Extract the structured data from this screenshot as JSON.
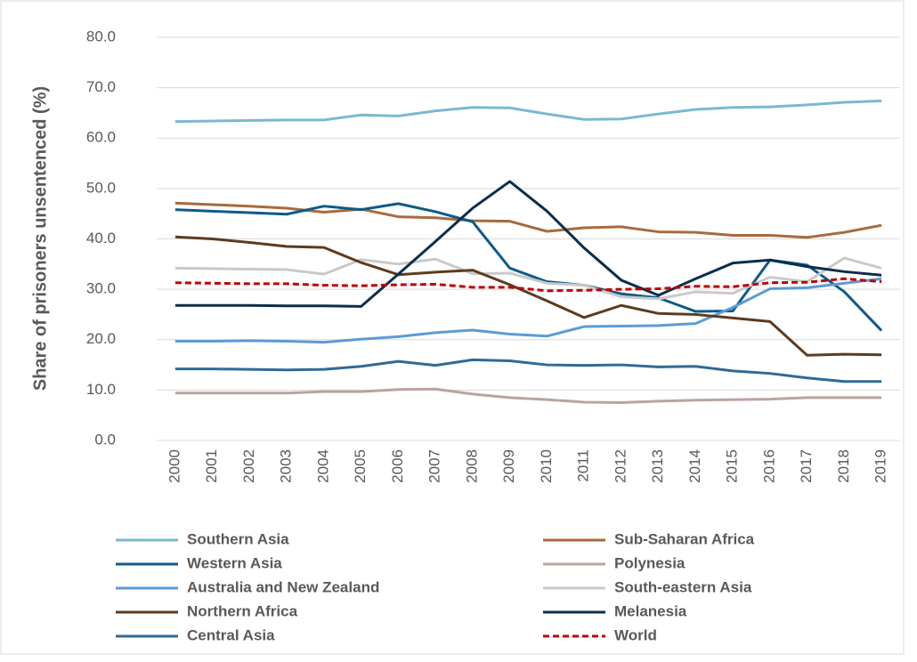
{
  "chart_data": {
    "type": "line",
    "y_label": "Share of prisoners unsentenced (%)",
    "categories": [
      "2000",
      "2001",
      "2002",
      "2003",
      "2004",
      "2005",
      "2006",
      "2007",
      "2008",
      "2009",
      "2010",
      "2011",
      "2012",
      "2013",
      "2014",
      "2015",
      "2016",
      "2017",
      "2018",
      "2019"
    ],
    "ylim": [
      0,
      80
    ],
    "yticks": [
      {
        "value": 0,
        "label": "0.0"
      },
      {
        "value": 10,
        "label": "10.0"
      },
      {
        "value": 20,
        "label": "20.0"
      },
      {
        "value": 30,
        "label": "30.0"
      },
      {
        "value": 40,
        "label": "40.0"
      },
      {
        "value": 50,
        "label": "50.0"
      },
      {
        "value": 60,
        "label": "60.0"
      },
      {
        "value": 70,
        "label": "70.0"
      },
      {
        "value": 80,
        "label": "80.0"
      }
    ],
    "grid": true,
    "legend": "bottom",
    "series": [
      {
        "name": "Southern Asia",
        "color": "#7ab8d2",
        "values": [
          63.3,
          63.4,
          63.5,
          63.6,
          63.6,
          64.6,
          64.4,
          65.4,
          66.1,
          66,
          64.8,
          63.7,
          63.8,
          64.8,
          65.7,
          66.1,
          66.2,
          66.6,
          67.1,
          67.4
        ]
      },
      {
        "name": "Sub-Saharan Africa",
        "color": "#a86a3d",
        "values": [
          47.1,
          46.8,
          46.5,
          46.1,
          45.3,
          45.9,
          44.4,
          44.2,
          43.6,
          43.5,
          41.5,
          42.2,
          42.4,
          41.4,
          41.3,
          40.7,
          40.7,
          40.3,
          41.3,
          42.7
        ]
      },
      {
        "name": "Western Asia",
        "color": "#0e5a8a",
        "values": [
          45.8,
          45.5,
          45.2,
          44.9,
          46.5,
          45.8,
          47,
          45.4,
          43.4,
          34.2,
          31.5,
          30.8,
          29.1,
          28.3,
          25.6,
          25.7,
          35.8,
          34.8,
          29.5,
          21.8
        ]
      },
      {
        "name": "Polynesia",
        "color": "#bba39d",
        "values": [
          9.4,
          9.4,
          9.4,
          9.4,
          9.7,
          9.7,
          10.1,
          10.2,
          9.2,
          8.5,
          8.1,
          7.6,
          7.5,
          7.8,
          8,
          8.1,
          8.2,
          8.5,
          8.5,
          8.5
        ]
      },
      {
        "name": "Australia and New Zealand",
        "color": "#5b9bd5",
        "values": [
          19.7,
          19.7,
          19.8,
          19.7,
          19.5,
          20.1,
          20.6,
          21.4,
          21.9,
          21.1,
          20.7,
          22.6,
          22.7,
          22.8,
          23.2,
          26.4,
          30.1,
          30.3,
          31.2,
          32.1
        ]
      },
      {
        "name": "South-eastern Asia",
        "color": "#c9c9c9",
        "values": [
          34.2,
          34.1,
          34,
          33.9,
          33,
          35.9,
          35,
          36,
          33.1,
          33.2,
          31.2,
          30.8,
          28.5,
          28.1,
          29.5,
          29.2,
          32.4,
          31.5,
          36.2,
          34.2
        ]
      },
      {
        "name": "Northern Africa",
        "color": "#5c3b20",
        "values": [
          40.4,
          40,
          39.3,
          38.5,
          38.3,
          35.3,
          32.9,
          33.4,
          33.8,
          30.9,
          27.7,
          24.4,
          26.8,
          25.2,
          25,
          24.3,
          23.6,
          16.9,
          17.1,
          17
        ]
      },
      {
        "name": "Melanesia",
        "color": "#0b2e4a",
        "values": [
          26.8,
          26.8,
          26.8,
          26.7,
          26.7,
          26.6,
          33,
          39.5,
          46.1,
          51.4,
          45.5,
          38.2,
          31.8,
          28.8,
          32.1,
          35.2,
          35.8,
          34.5,
          33.5,
          32.8
        ]
      },
      {
        "name": "Central Asia",
        "color": "#2e6a98",
        "values": [
          14.2,
          14.2,
          14.1,
          14,
          14.1,
          14.7,
          15.7,
          14.9,
          16,
          15.8,
          15,
          14.9,
          15,
          14.6,
          14.7,
          13.8,
          13.3,
          12.4,
          11.7,
          11.7
        ]
      },
      {
        "name": "World",
        "color": "#c00000",
        "dashed": true,
        "values": [
          31.3,
          31.2,
          31.1,
          31.1,
          30.8,
          30.7,
          30.9,
          31,
          30.4,
          30.4,
          29.7,
          29.8,
          30,
          30.1,
          30.6,
          30.5,
          31.3,
          31.4,
          32.1,
          31.5
        ]
      }
    ]
  }
}
